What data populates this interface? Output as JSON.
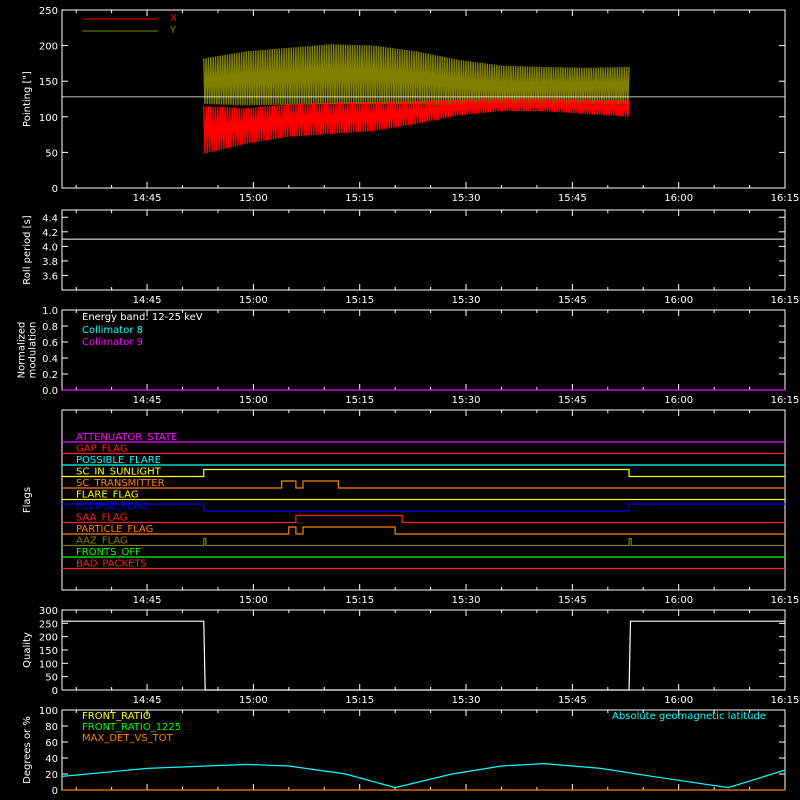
{
  "time_ticks": [
    "14:45",
    "15:00",
    "15:15",
    "15:30",
    "15:45",
    "16:00",
    "16:15"
  ],
  "colors": {
    "axis": "#ffffff",
    "x_pointing": "#ff0000",
    "y_pointing": "#808000",
    "cyan": "#00ffff",
    "magenta": "#ff00ff",
    "yellow": "#ffff00",
    "orange": "#ff8000",
    "green": "#00ff00",
    "blue": "#0000ff",
    "red": "#ff2020",
    "olive": "#808000"
  },
  "chart_data": [
    {
      "type": "line",
      "ylabel": "Pointing [\"]",
      "ylim": [
        0,
        250
      ],
      "yticks": [
        "0",
        "50",
        "100",
        "150",
        "200",
        "250"
      ],
      "x_range": [
        "14:33",
        "16:15"
      ],
      "data_span": [
        "14:53",
        "15:53"
      ],
      "reference_line": 128,
      "legend": [
        {
          "name": "X",
          "color": "#ff0000"
        },
        {
          "name": "Y",
          "color": "#808000"
        }
      ],
      "series": [
        {
          "name": "X",
          "envelope_low": [
            48,
            62,
            72,
            76,
            80,
            90,
            102,
            108,
            108,
            104,
            100
          ],
          "envelope_high": [
            115,
            112,
            118,
            120,
            121,
            122,
            124,
            125,
            125,
            124,
            123
          ]
        },
        {
          "name": "Y",
          "envelope_low": [
            118,
            116,
            117,
            118,
            118,
            118,
            115,
            113,
            116,
            118,
            118
          ],
          "envelope_high": [
            182,
            192,
            197,
            202,
            200,
            192,
            180,
            172,
            170,
            169,
            170
          ]
        }
      ]
    },
    {
      "type": "line",
      "ylabel": "Roll period [s]",
      "ylim": [
        3.4,
        4.5
      ],
      "yticks": [
        "3.6",
        "3.8",
        "4.0",
        "4.2",
        "4.4"
      ],
      "series": [
        {
          "value": 4.1
        }
      ]
    },
    {
      "type": "line",
      "ylabel": "Normalized modulation",
      "ylim": [
        0,
        1
      ],
      "yticks": [
        "0.0",
        "0.2",
        "0.4",
        "0.6",
        "0.8",
        "1.0"
      ],
      "legend_title": "Energy band: 12-25 keV",
      "legend": [
        {
          "name": "Collimator 8",
          "color": "#00ffff"
        },
        {
          "name": "Collimator 9",
          "color": "#ff00ff"
        }
      ],
      "series": [
        {
          "name": "Collimator 9",
          "value": 0
        }
      ]
    },
    {
      "type": "line",
      "ylabel": "Flags",
      "flags": [
        {
          "name": "ATTENUATOR_STATE",
          "color": "#ff00ff",
          "segments": []
        },
        {
          "name": "GAP_FLAG",
          "color": "#ff2020",
          "segments": []
        },
        {
          "name": "POSSIBLE_FLARE",
          "color": "#00ffff",
          "segments": []
        },
        {
          "name": "SC_IN_SUNLIGHT",
          "color": "#ffff00",
          "segments": [
            [
              "14:53",
              "15:53"
            ]
          ]
        },
        {
          "name": "SC_TRANSMITTER",
          "color": "#ff8000",
          "segments": [
            [
              "15:04",
              "15:06"
            ],
            [
              "15:07",
              "15:12"
            ]
          ]
        },
        {
          "name": "FLARE_FLAG",
          "color": "#ffff00",
          "segments": []
        },
        {
          "name": "ECLIPSE_FLAG",
          "color": "#0000ff",
          "segments": [
            [
              "14:33",
              "14:53"
            ],
            [
              "15:53",
              "16:15"
            ]
          ]
        },
        {
          "name": "SAA_FLAG",
          "color": "#ff2020",
          "segments": [
            [
              "15:06",
              "15:21"
            ]
          ]
        },
        {
          "name": "PARTICLE_FLAG",
          "color": "#ff8000",
          "segments": [
            [
              "15:05",
              "15:06"
            ],
            [
              "15:07",
              "15:20"
            ]
          ]
        },
        {
          "name": "AAZ_FLAG",
          "color": "#808000",
          "segments": [
            [
              "14:53",
              "14:53.3"
            ],
            [
              "15:53",
              "15:53.3"
            ]
          ]
        },
        {
          "name": "FRONTS_OFF",
          "color": "#00ff00",
          "segments": []
        },
        {
          "name": "BAD_PACKETS",
          "color": "#ff2020",
          "segments": []
        }
      ]
    },
    {
      "type": "line",
      "ylabel": "Quality",
      "ylim": [
        0,
        300
      ],
      "yticks": [
        "0",
        "50",
        "100",
        "150",
        "200",
        "250",
        "300"
      ],
      "series": [
        {
          "points": [
            [
              "14:33",
              258
            ],
            [
              "14:53",
              258
            ],
            [
              "14:53.2",
              0
            ],
            [
              "15:53",
              0
            ],
            [
              "15:53.2",
              258
            ],
            [
              "16:15",
              258
            ]
          ]
        }
      ]
    },
    {
      "type": "line",
      "ylabel": "Degrees or %",
      "ylim": [
        0,
        100
      ],
      "yticks": [
        "0",
        "20",
        "40",
        "60",
        "80",
        "100"
      ],
      "legend": [
        {
          "name": "FRONT_RATIO",
          "color": "#ffff00"
        },
        {
          "name": "FRONT_RATIO_1225",
          "color": "#00ff00"
        },
        {
          "name": "MAX_DET_VS_TOT",
          "color": "#ff8000"
        }
      ],
      "right_label": {
        "name": "Absolute geomagnetic latitude",
        "color": "#00ffff"
      },
      "series": [
        {
          "name": "Absolute geomagnetic latitude",
          "color": "#00ffff",
          "points": [
            [
              "14:33",
              17
            ],
            [
              "14:45",
              27
            ],
            [
              "14:59",
              32
            ],
            [
              "15:05",
              30
            ],
            [
              "15:13",
              20
            ],
            [
              "15:20",
              3
            ],
            [
              "15:28",
              20
            ],
            [
              "15:35",
              30
            ],
            [
              "15:41",
              33
            ],
            [
              "15:49",
              27
            ],
            [
              "15:57",
              16
            ],
            [
              "16:07",
              3
            ],
            [
              "16:15",
              25
            ]
          ]
        },
        {
          "name": "MAX_DET_VS_TOT",
          "color": "#ff8000",
          "points": [
            [
              "14:33",
              0
            ],
            [
              "16:15",
              0
            ]
          ]
        }
      ]
    }
  ]
}
